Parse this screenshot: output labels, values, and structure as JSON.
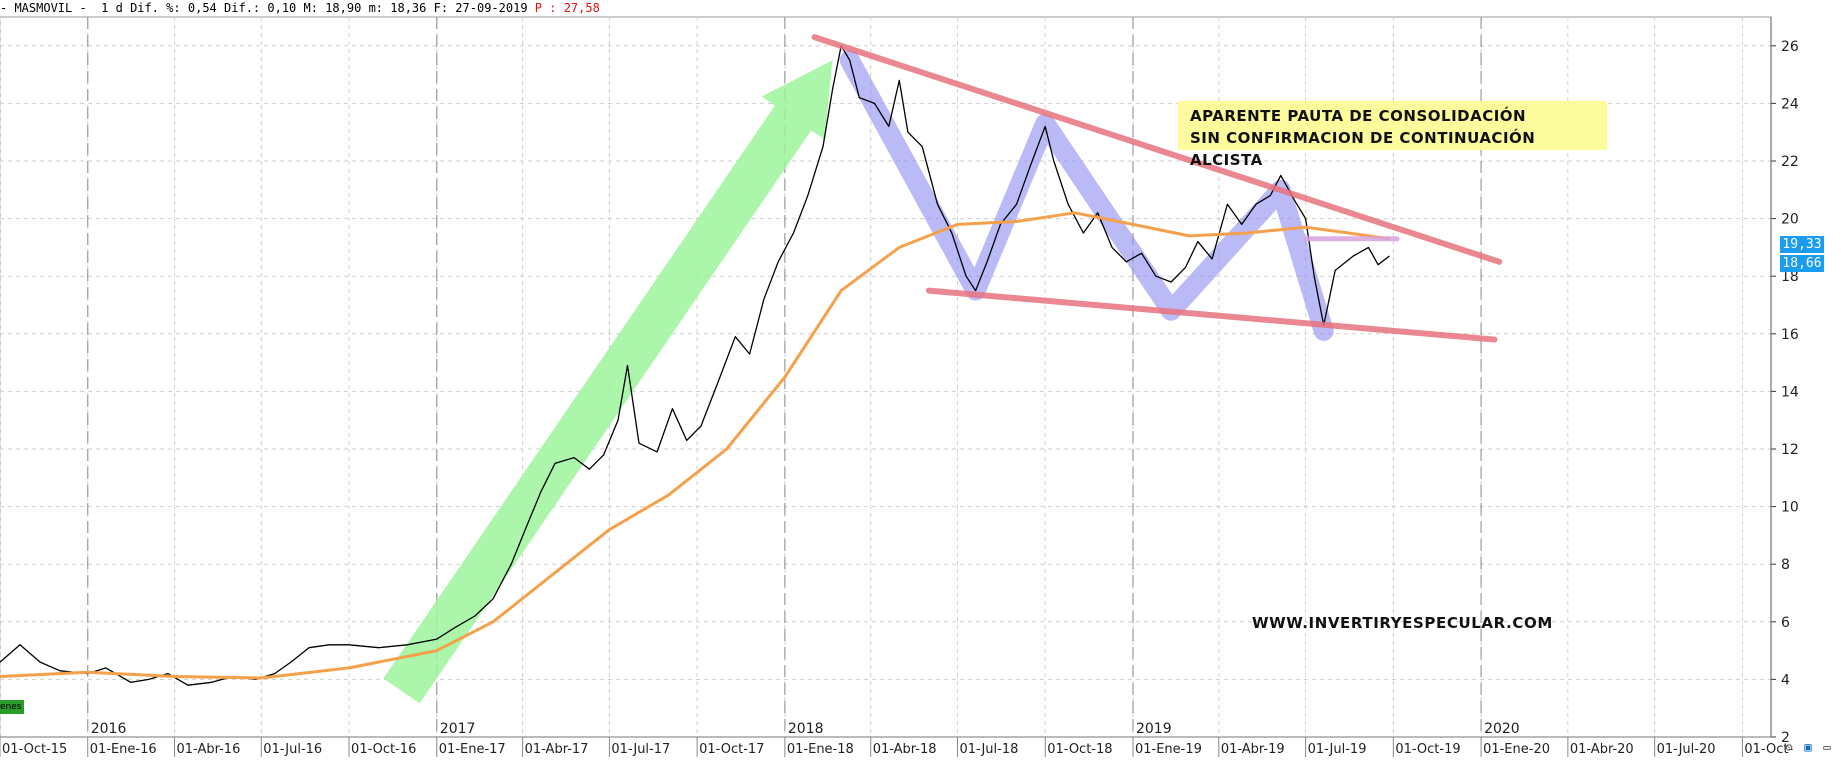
{
  "header": {
    "prefix": "- MASMOVIL - ",
    "timeframe": " 1 d",
    "dif_pct_label": "Dif. %:",
    "dif_pct_value": "0,54",
    "dif_label": "Dif.:",
    "dif_value": "0,10",
    "max_label": "M:",
    "max_value": "18,90",
    "min_label": "m:",
    "min_value": "18,36",
    "date_label": "F:",
    "date_value": "27-09-2019",
    "p_label": "P :",
    "p_value": "27,58"
  },
  "annotation": {
    "line1": "APARENTE PAUTA DE CONSOLIDACIÓN",
    "line2": "SIN CONFIRMACION DE CONTINUACIÓN ALCISTA"
  },
  "watermark": "WWW.INVERTIRYESPECULAR.COM",
  "legend_chip": "enes",
  "price_tags": {
    "upper": "19,33",
    "lower": "18,66",
    "upper_color": "#1a9cf0"
  },
  "icons": [
    "gear-icon",
    "save-icon",
    "window-icon"
  ],
  "chart_data": {
    "type": "line",
    "title": "",
    "xlabel": "",
    "ylabel": "",
    "ylim": [
      2,
      27
    ],
    "y_ticks": [
      2,
      4,
      6,
      8,
      10,
      12,
      14,
      16,
      18,
      20,
      22,
      24,
      26
    ],
    "y_axis_position": "right",
    "grid": true,
    "x_range": [
      "2015-10-01",
      "2020-10-31"
    ],
    "x_ticks": [
      {
        "date": "2015-10-01",
        "label": "01-Oct-15"
      },
      {
        "date": "2016-01-01",
        "label": "01-Ene-16"
      },
      {
        "date": "2016-04-01",
        "label": "01-Abr-16"
      },
      {
        "date": "2016-07-01",
        "label": "01-Jul-16"
      },
      {
        "date": "2016-10-01",
        "label": "01-Oct-16"
      },
      {
        "date": "2017-01-01",
        "label": "01-Ene-17"
      },
      {
        "date": "2017-04-01",
        "label": "01-Abr-17"
      },
      {
        "date": "2017-07-01",
        "label": "01-Jul-17"
      },
      {
        "date": "2017-10-01",
        "label": "01-Oct-17"
      },
      {
        "date": "2018-01-01",
        "label": "01-Ene-18"
      },
      {
        "date": "2018-04-01",
        "label": "01-Abr-18"
      },
      {
        "date": "2018-07-01",
        "label": "01-Jul-18"
      },
      {
        "date": "2018-10-01",
        "label": "01-Oct-18"
      },
      {
        "date": "2019-01-01",
        "label": "01-Ene-19"
      },
      {
        "date": "2019-04-01",
        "label": "01-Abr-19"
      },
      {
        "date": "2019-07-01",
        "label": "01-Jul-19"
      },
      {
        "date": "2019-10-01",
        "label": "01-Oct-19"
      },
      {
        "date": "2020-01-01",
        "label": "01-Ene-20"
      },
      {
        "date": "2020-04-01",
        "label": "01-Abr-20"
      },
      {
        "date": "2020-07-01",
        "label": "01-Jul-20"
      },
      {
        "date": "2020-10-01",
        "label": "01-Oct-"
      }
    ],
    "year_labels": [
      {
        "date": "2016-01-01",
        "label": "2016"
      },
      {
        "date": "2017-01-01",
        "label": "2017"
      },
      {
        "date": "2018-01-01",
        "label": "2018"
      },
      {
        "date": "2019-01-01",
        "label": "2019"
      },
      {
        "date": "2020-01-01",
        "label": "2020"
      }
    ],
    "series": [
      {
        "color": "#000000",
        "points": [
          [
            "2015-10-01",
            4.6
          ],
          [
            "2015-10-22",
            5.2
          ],
          [
            "2015-11-12",
            4.6
          ],
          [
            "2015-12-03",
            4.3
          ],
          [
            "2016-01-01",
            4.2
          ],
          [
            "2016-01-20",
            4.4
          ],
          [
            "2016-02-15",
            3.9
          ],
          [
            "2016-03-05",
            4.0
          ],
          [
            "2016-03-25",
            4.2
          ],
          [
            "2016-04-15",
            3.8
          ],
          [
            "2016-05-10",
            3.9
          ],
          [
            "2016-06-01",
            4.1
          ],
          [
            "2016-06-25",
            4.0
          ],
          [
            "2016-07-15",
            4.2
          ],
          [
            "2016-08-01",
            4.6
          ],
          [
            "2016-08-20",
            5.1
          ],
          [
            "2016-09-10",
            5.2
          ],
          [
            "2016-10-01",
            5.2
          ],
          [
            "2016-11-01",
            5.1
          ],
          [
            "2016-12-01",
            5.2
          ],
          [
            "2017-01-01",
            5.4
          ],
          [
            "2017-01-20",
            5.8
          ],
          [
            "2017-02-10",
            6.2
          ],
          [
            "2017-03-01",
            6.8
          ],
          [
            "2017-03-20",
            8.0
          ],
          [
            "2017-04-05",
            9.3
          ],
          [
            "2017-04-20",
            10.5
          ],
          [
            "2017-05-05",
            11.5
          ],
          [
            "2017-05-25",
            11.7
          ],
          [
            "2017-06-10",
            11.3
          ],
          [
            "2017-06-25",
            11.8
          ],
          [
            "2017-07-10",
            13.0
          ],
          [
            "2017-07-20",
            14.9
          ],
          [
            "2017-08-01",
            12.2
          ],
          [
            "2017-08-20",
            11.9
          ],
          [
            "2017-09-05",
            13.4
          ],
          [
            "2017-09-20",
            12.3
          ],
          [
            "2017-10-05",
            12.8
          ],
          [
            "2017-10-25",
            14.5
          ],
          [
            "2017-11-10",
            15.9
          ],
          [
            "2017-11-25",
            15.3
          ],
          [
            "2017-12-10",
            17.2
          ],
          [
            "2017-12-25",
            18.5
          ],
          [
            "2018-01-10",
            19.5
          ],
          [
            "2018-01-25",
            20.8
          ],
          [
            "2018-02-10",
            22.5
          ],
          [
            "2018-02-20",
            24.5
          ],
          [
            "2018-03-01",
            26.0
          ],
          [
            "2018-03-10",
            25.5
          ],
          [
            "2018-03-20",
            24.2
          ],
          [
            "2018-04-05",
            24.0
          ],
          [
            "2018-04-20",
            23.2
          ],
          [
            "2018-05-01",
            24.8
          ],
          [
            "2018-05-10",
            23.0
          ],
          [
            "2018-05-25",
            22.5
          ],
          [
            "2018-06-10",
            20.5
          ],
          [
            "2018-06-25",
            19.5
          ],
          [
            "2018-07-10",
            18.0
          ],
          [
            "2018-07-20",
            17.5
          ],
          [
            "2018-08-01",
            18.5
          ],
          [
            "2018-08-15",
            19.8
          ],
          [
            "2018-09-01",
            20.5
          ],
          [
            "2018-09-15",
            21.8
          ],
          [
            "2018-10-01",
            23.2
          ],
          [
            "2018-10-10",
            22.0
          ],
          [
            "2018-10-25",
            20.5
          ],
          [
            "2018-11-10",
            19.5
          ],
          [
            "2018-11-25",
            20.2
          ],
          [
            "2018-12-10",
            19.0
          ],
          [
            "2018-12-25",
            18.5
          ],
          [
            "2019-01-10",
            18.8
          ],
          [
            "2019-01-25",
            18.0
          ],
          [
            "2019-02-10",
            17.8
          ],
          [
            "2019-02-25",
            18.3
          ],
          [
            "2019-03-10",
            19.2
          ],
          [
            "2019-03-25",
            18.6
          ],
          [
            "2019-04-10",
            20.5
          ],
          [
            "2019-04-25",
            19.8
          ],
          [
            "2019-05-10",
            20.5
          ],
          [
            "2019-05-25",
            20.8
          ],
          [
            "2019-06-05",
            21.5
          ],
          [
            "2019-06-20",
            20.6
          ],
          [
            "2019-07-01",
            20.0
          ],
          [
            "2019-07-10",
            18.0
          ],
          [
            "2019-07-20",
            16.3
          ],
          [
            "2019-08-01",
            18.2
          ],
          [
            "2019-08-20",
            18.7
          ],
          [
            "2019-09-05",
            19.0
          ],
          [
            "2019-09-15",
            18.4
          ],
          [
            "2019-09-27",
            18.7
          ]
        ]
      },
      {
        "color": "#f5a04a",
        "points": [
          [
            "2015-10-01",
            4.1
          ],
          [
            "2016-01-01",
            4.25
          ],
          [
            "2016-04-01",
            4.1
          ],
          [
            "2016-07-01",
            4.05
          ],
          [
            "2016-10-01",
            4.4
          ],
          [
            "2017-01-01",
            5.0
          ],
          [
            "2017-03-01",
            6.0
          ],
          [
            "2017-05-01",
            7.6
          ],
          [
            "2017-07-01",
            9.2
          ],
          [
            "2017-09-01",
            10.4
          ],
          [
            "2017-11-01",
            12.0
          ],
          [
            "2018-01-01",
            14.5
          ],
          [
            "2018-03-01",
            17.5
          ],
          [
            "2018-05-01",
            19.0
          ],
          [
            "2018-07-01",
            19.8
          ],
          [
            "2018-09-01",
            19.9
          ],
          [
            "2018-11-01",
            20.2
          ],
          [
            "2019-01-01",
            19.8
          ],
          [
            "2019-03-01",
            19.4
          ],
          [
            "2019-05-01",
            19.5
          ],
          [
            "2019-07-01",
            19.7
          ],
          [
            "2019-08-15",
            19.5
          ],
          [
            "2019-09-27",
            19.3
          ]
        ]
      }
    ],
    "drawings": {
      "trend_lines": [
        {
          "color": "#e8737e",
          "from": [
            "2018-02-01",
            26.3
          ],
          "to": [
            "2020-01-20",
            18.5
          ]
        },
        {
          "color": "#e8737e",
          "from": [
            "2018-06-01",
            17.5
          ],
          "to": [
            "2020-01-15",
            15.8
          ]
        },
        {
          "color": "#d8a3e0",
          "from": [
            "2019-07-01",
            19.3
          ],
          "to": [
            "2019-10-05",
            19.3
          ]
        }
      ],
      "zigzag": {
        "color": "#8c8ef0",
        "points": [
          [
            "2018-03-10",
            25.5
          ],
          [
            "2018-07-20",
            17.5
          ],
          [
            "2018-10-01",
            23.3
          ],
          [
            "2019-02-10",
            16.8
          ],
          [
            "2019-06-05",
            21.0
          ],
          [
            "2019-07-20",
            16.1
          ]
        ]
      },
      "arrow": {
        "color": "#9ef59e",
        "from": [
          "2016-11-25",
          3.6
        ],
        "to": [
          "2018-02-20",
          25.5
        ]
      }
    }
  }
}
